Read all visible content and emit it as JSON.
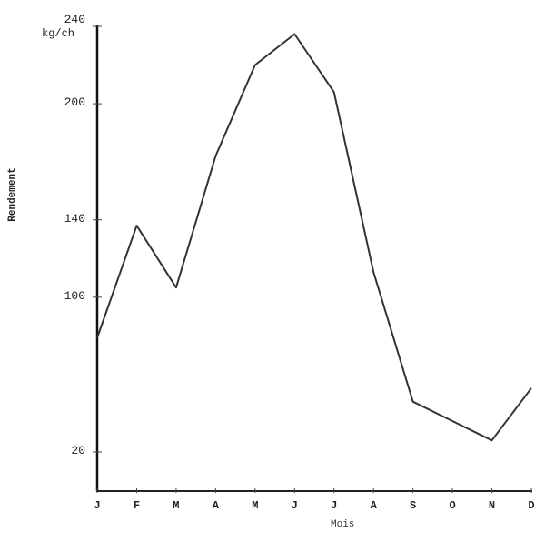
{
  "chart_data": {
    "type": "line",
    "title": "",
    "xlabel": "Mois",
    "ylabel": "Rendement",
    "y_unit": "kg/ch",
    "categories": [
      "J",
      "F",
      "M",
      "A",
      "M",
      "J",
      "J",
      "A",
      "S",
      "O",
      "N",
      "D"
    ],
    "series": [
      {
        "name": "Rendement",
        "values": [
          79,
          137,
          105,
          173,
          220,
          236,
          206,
          113,
          46,
          36,
          26,
          53
        ]
      }
    ],
    "y_ticks": [
      20,
      100,
      140,
      200,
      240
    ],
    "y_tick_labels": [
      "20",
      "100",
      "140",
      "200",
      "240"
    ],
    "ylim": [
      0,
      240
    ],
    "grid": false,
    "legend": "none",
    "line_color": "#333333"
  }
}
